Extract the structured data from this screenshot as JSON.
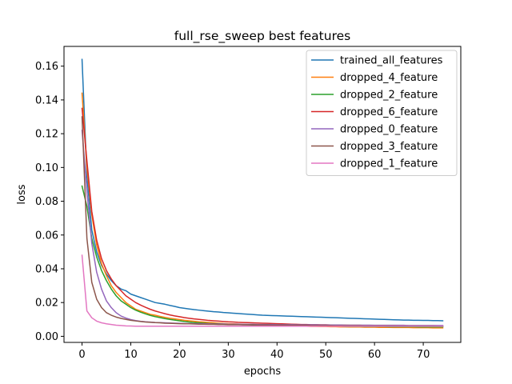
{
  "chart_data": {
    "type": "line",
    "title": "full_rse_sweep best features",
    "xlabel": "epochs",
    "ylabel": "loss",
    "xlim": [
      -3.7,
      77.7
    ],
    "ylim": [
      -0.0036,
      0.1717
    ],
    "xticks": [
      0,
      10,
      20,
      30,
      40,
      50,
      60,
      70
    ],
    "yticks": [
      0.0,
      0.02,
      0.04,
      0.06,
      0.08,
      0.1,
      0.12,
      0.14,
      0.16
    ],
    "ytick_labels": [
      "0.00",
      "0.02",
      "0.04",
      "0.06",
      "0.08",
      "0.10",
      "0.12",
      "0.14",
      "0.16"
    ],
    "grid": false,
    "legend_position": "top-right",
    "x": [
      0,
      1,
      2,
      3,
      4,
      5,
      6,
      7,
      8,
      9,
      10,
      11,
      12,
      13,
      14,
      15,
      16,
      17,
      18,
      19,
      20,
      21,
      22,
      23,
      24,
      25,
      26,
      27,
      28,
      29,
      30,
      31,
      32,
      33,
      34,
      35,
      36,
      37,
      38,
      39,
      40,
      41,
      42,
      43,
      44,
      45,
      46,
      47,
      48,
      49,
      50,
      51,
      52,
      53,
      54,
      55,
      56,
      57,
      58,
      59,
      60,
      61,
      62,
      63,
      64,
      65,
      66,
      67,
      68,
      69,
      70,
      71,
      72,
      73,
      74
    ],
    "series": [
      {
        "name": "trained_all_features",
        "color": "#1f77b4",
        "values": [
          0.164,
          0.095,
          0.063,
          0.05,
          0.042,
          0.037,
          0.033,
          0.03,
          0.028,
          0.027,
          0.025,
          0.024,
          0.023,
          0.022,
          0.021,
          0.02,
          0.0195,
          0.019,
          0.0183,
          0.0177,
          0.017,
          0.0166,
          0.0162,
          0.0158,
          0.0155,
          0.0152,
          0.0149,
          0.0146,
          0.0144,
          0.0141,
          0.0139,
          0.0137,
          0.0135,
          0.0133,
          0.0131,
          0.0129,
          0.0127,
          0.0125,
          0.0124,
          0.0123,
          0.0122,
          0.0121,
          0.012,
          0.0119,
          0.0118,
          0.0117,
          0.0116,
          0.0115,
          0.0114,
          0.0113,
          0.0112,
          0.0111,
          0.011,
          0.0109,
          0.0108,
          0.0107,
          0.0106,
          0.0105,
          0.0104,
          0.0103,
          0.0102,
          0.0101,
          0.01,
          0.0099,
          0.0098,
          0.0097,
          0.0096,
          0.0096,
          0.0095,
          0.0095,
          0.0094,
          0.0094,
          0.0093,
          0.0093,
          0.0092
        ]
      },
      {
        "name": "dropped_4_feature",
        "color": "#ff7f0e",
        "values": [
          0.144,
          0.1,
          0.072,
          0.054,
          0.043,
          0.036,
          0.03,
          0.026,
          0.023,
          0.02,
          0.018,
          0.016,
          0.015,
          0.014,
          0.013,
          0.0125,
          0.0118,
          0.0112,
          0.0107,
          0.0103,
          0.0099,
          0.0095,
          0.0092,
          0.0089,
          0.0086,
          0.0084,
          0.0082,
          0.008,
          0.0078,
          0.0076,
          0.0075,
          0.0074,
          0.0073,
          0.0072,
          0.0071,
          0.007,
          0.0069,
          0.0068,
          0.0067,
          0.0066,
          0.0065,
          0.0064,
          0.0063,
          0.0062,
          0.0061,
          0.006,
          0.006,
          0.0059,
          0.0059,
          0.0058,
          0.0058,
          0.0057,
          0.0057,
          0.0056,
          0.0056,
          0.0055,
          0.0055,
          0.0055,
          0.0054,
          0.0054,
          0.0054,
          0.0053,
          0.0053,
          0.0053,
          0.0052,
          0.0052,
          0.0052,
          0.0052,
          0.0051,
          0.0051,
          0.0051,
          0.0051,
          0.005,
          0.005,
          0.005
        ]
      },
      {
        "name": "dropped_2_feature",
        "color": "#2ca02c",
        "values": [
          0.089,
          0.077,
          0.058,
          0.047,
          0.039,
          0.033,
          0.028,
          0.024,
          0.021,
          0.019,
          0.017,
          0.0155,
          0.0143,
          0.0133,
          0.0124,
          0.0117,
          0.0111,
          0.0105,
          0.01,
          0.0096,
          0.0092,
          0.0088,
          0.0085,
          0.0082,
          0.008,
          0.0078,
          0.0076,
          0.0075,
          0.0074,
          0.0073,
          0.0072,
          0.0071,
          0.007,
          0.0069,
          0.0068,
          0.0067,
          0.0066,
          0.0066,
          0.0065,
          0.0065,
          0.0064,
          0.0064,
          0.0063,
          0.0063,
          0.0062,
          0.0062,
          0.0062,
          0.0061,
          0.0061,
          0.0061,
          0.006,
          0.006,
          0.006,
          0.006,
          0.0059,
          0.0059,
          0.0059,
          0.0059,
          0.0058,
          0.0058,
          0.0058,
          0.0058,
          0.0058,
          0.0057,
          0.0057,
          0.0057,
          0.0057,
          0.0057,
          0.0057,
          0.0056,
          0.0056,
          0.0056,
          0.0056,
          0.0056,
          0.0056
        ]
      },
      {
        "name": "dropped_6_feature",
        "color": "#d62728",
        "values": [
          0.135,
          0.104,
          0.074,
          0.057,
          0.046,
          0.039,
          0.034,
          0.03,
          0.027,
          0.024,
          0.022,
          0.02,
          0.0185,
          0.0172,
          0.016,
          0.015,
          0.0142,
          0.0134,
          0.0127,
          0.0121,
          0.0116,
          0.0111,
          0.0107,
          0.0103,
          0.01,
          0.0097,
          0.0094,
          0.0092,
          0.009,
          0.0088,
          0.0086,
          0.0085,
          0.0083,
          0.0082,
          0.0081,
          0.008,
          0.0079,
          0.0078,
          0.0077,
          0.0076,
          0.0075,
          0.0074,
          0.0073,
          0.0072,
          0.0071,
          0.007,
          0.007,
          0.0069,
          0.0069,
          0.0068,
          0.0068,
          0.0067,
          0.0067,
          0.0066,
          0.0066,
          0.0065,
          0.0065,
          0.0065,
          0.0064,
          0.0064,
          0.0064,
          0.0063,
          0.0063,
          0.0063,
          0.0062,
          0.0062,
          0.0062,
          0.0062,
          0.0061,
          0.0061,
          0.0061,
          0.0061,
          0.006,
          0.006,
          0.006
        ]
      },
      {
        "name": "dropped_0_feature",
        "color": "#9467bd",
        "values": [
          0.122,
          0.086,
          0.055,
          0.038,
          0.028,
          0.021,
          0.017,
          0.014,
          0.012,
          0.0108,
          0.0099,
          0.0093,
          0.0089,
          0.0086,
          0.0084,
          0.0082,
          0.0081,
          0.008,
          0.0079,
          0.0078,
          0.0077,
          0.0076,
          0.0076,
          0.0075,
          0.0075,
          0.0074,
          0.0074,
          0.0073,
          0.0073,
          0.0073,
          0.0072,
          0.0072,
          0.0072,
          0.0071,
          0.0071,
          0.0071,
          0.007,
          0.007,
          0.007,
          0.007,
          0.0069,
          0.0069,
          0.0069,
          0.0069,
          0.0068,
          0.0068,
          0.0068,
          0.0068,
          0.0068,
          0.0067,
          0.0067,
          0.0067,
          0.0067,
          0.0067,
          0.0066,
          0.0066,
          0.0066,
          0.0066,
          0.0066,
          0.0066,
          0.0065,
          0.0065,
          0.0065,
          0.0065,
          0.0065,
          0.0065,
          0.0065,
          0.0064,
          0.0064,
          0.0064,
          0.0064,
          0.0064,
          0.0064,
          0.0064,
          0.0064
        ]
      },
      {
        "name": "dropped_3_feature",
        "color": "#8c564b",
        "values": [
          0.13,
          0.058,
          0.032,
          0.022,
          0.017,
          0.014,
          0.0125,
          0.0114,
          0.0106,
          0.01,
          0.0095,
          0.0091,
          0.0088,
          0.0085,
          0.0083,
          0.0081,
          0.008,
          0.0078,
          0.0077,
          0.0076,
          0.0075,
          0.0074,
          0.0074,
          0.0073,
          0.0072,
          0.0072,
          0.0071,
          0.0071,
          0.007,
          0.007,
          0.0069,
          0.0069,
          0.0069,
          0.0068,
          0.0068,
          0.0068,
          0.0067,
          0.0067,
          0.0067,
          0.0066,
          0.0066,
          0.0066,
          0.0066,
          0.0065,
          0.0065,
          0.0065,
          0.0065,
          0.0064,
          0.0064,
          0.0064,
          0.0064,
          0.0064,
          0.0063,
          0.0063,
          0.0063,
          0.0063,
          0.0063,
          0.0063,
          0.0062,
          0.0062,
          0.0062,
          0.0062,
          0.0062,
          0.0062,
          0.0062,
          0.0061,
          0.0061,
          0.0061,
          0.0061,
          0.0061,
          0.0061,
          0.0061,
          0.0061,
          0.006,
          0.006
        ]
      },
      {
        "name": "dropped_1_feature",
        "color": "#e377c2",
        "values": [
          0.048,
          0.015,
          0.011,
          0.009,
          0.008,
          0.0074,
          0.007,
          0.0066,
          0.0064,
          0.0062,
          0.0061,
          0.006,
          0.006,
          0.006,
          0.006,
          0.006,
          0.006,
          0.006,
          0.006,
          0.006,
          0.006,
          0.006,
          0.006,
          0.006,
          0.006,
          0.006,
          0.006,
          0.006,
          0.006,
          0.006,
          0.006,
          0.006,
          0.006,
          0.006,
          0.006,
          0.006,
          0.006,
          0.006,
          0.006,
          0.006,
          0.006,
          0.006,
          0.006,
          0.006,
          0.006,
          0.006,
          0.006,
          0.006,
          0.006,
          0.006,
          0.006,
          0.006,
          0.006,
          0.006,
          0.006,
          0.006,
          0.006,
          0.006,
          0.006,
          0.006,
          0.006,
          0.006,
          0.006,
          0.006,
          0.006,
          0.006,
          0.006,
          0.006,
          0.006,
          0.006,
          0.006,
          0.006,
          0.006,
          0.006,
          0.006
        ]
      }
    ]
  }
}
